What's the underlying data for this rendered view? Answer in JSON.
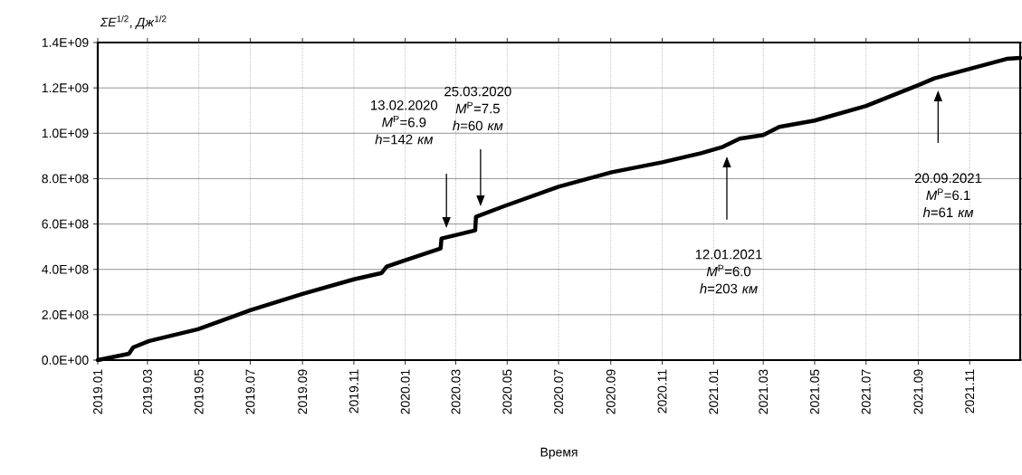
{
  "chart_data": {
    "type": "line",
    "xlabel": "Время",
    "ylabel": "*ΣE*$^{1/2}$, *Дж*$^{1/2}$",
    "x": [
      "2019-01-01",
      "2019-02-07",
      "2019-02-12",
      "2019-03-03",
      "2019-04-30",
      "2019-07-01",
      "2019-09-01",
      "2019-11-01",
      "2019-12-04",
      "2019-12-10",
      "2020-01-01",
      "2020-02-12",
      "2020-02-13",
      "2020-03-24",
      "2020-03-25",
      "2020-04-27",
      "2020-07-01",
      "2020-09-02",
      "2020-11-01",
      "2020-12-17",
      "2021-01-12",
      "2021-02-01",
      "2021-03-01",
      "2021-03-20",
      "2021-05-01",
      "2021-07-01",
      "2021-09-01",
      "2021-09-20",
      "2021-11-01",
      "2021-12-15",
      "2021-12-31"
    ],
    "series": [
      {
        "color": "#000000",
        "values": [
          0,
          28000000,
          56000000,
          84000000,
          136000000,
          220000000,
          292000000,
          356000000,
          384000000,
          412000000,
          440000000,
          492000000,
          536000000,
          572000000,
          632000000,
          678000000,
          764000000,
          828000000,
          872000000,
          912000000,
          940000000,
          976000000,
          992000000,
          1028000000,
          1056000000,
          1120000000,
          1212000000,
          1242000000,
          1284000000,
          1328000000,
          1332000000
        ]
      }
    ],
    "xlim": [
      "2019-01-01",
      "2021-12-31"
    ],
    "ylim": [
      0,
      1400000000
    ],
    "xticks": [
      {
        "value": "2019-01-01",
        "label": "2019.01"
      },
      {
        "value": "2019-03-01",
        "label": "2019.03"
      },
      {
        "value": "2019-05-01",
        "label": "2019.05"
      },
      {
        "value": "2019-07-01",
        "label": "2019.07"
      },
      {
        "value": "2019-09-01",
        "label": "2019.09"
      },
      {
        "value": "2019-11-01",
        "label": "2019.11"
      },
      {
        "value": "2020-01-01",
        "label": "2020.01"
      },
      {
        "value": "2020-03-01",
        "label": "2020.03"
      },
      {
        "value": "2020-05-01",
        "label": "2020.05"
      },
      {
        "value": "2020-07-01",
        "label": "2020.07"
      },
      {
        "value": "2020-09-01",
        "label": "2020.09"
      },
      {
        "value": "2020-11-01",
        "label": "2020.11"
      },
      {
        "value": "2021-01-01",
        "label": "2021.01"
      },
      {
        "value": "2021-03-01",
        "label": "2021.03"
      },
      {
        "value": "2021-05-01",
        "label": "2021.05"
      },
      {
        "value": "2021-07-01",
        "label": "2021.07"
      },
      {
        "value": "2021-09-01",
        "label": "2021.09"
      },
      {
        "value": "2021-11-01",
        "label": "2021.11"
      }
    ],
    "yticks": [
      {
        "value": 0,
        "label": "0.0E+00"
      },
      {
        "value": 200000000,
        "label": "2.0E+08"
      },
      {
        "value": 400000000,
        "label": "4.0E+08"
      },
      {
        "value": 600000000,
        "label": "6.0E+08"
      },
      {
        "value": 800000000,
        "label": "8.0E+08"
      },
      {
        "value": 1000000000,
        "label": "1.0E+09"
      },
      {
        "value": 1200000000,
        "label": "1.2E+09"
      },
      {
        "value": 1400000000,
        "label": "1.4E+09"
      }
    ],
    "grid": true,
    "annotations": [
      "13.02.2020 *M*$^{P}$=6.9 *h*=142 *км*",
      "25.03.2020 *M*$^{P}$=7.5 *h*=60 *км*",
      "12.01.2021 *M*$^{P}$=6.0 *h*=203 *км*",
      "20.09.2021 *M*$^{P}$=6.1 *h*=61 *км*"
    ]
  }
}
